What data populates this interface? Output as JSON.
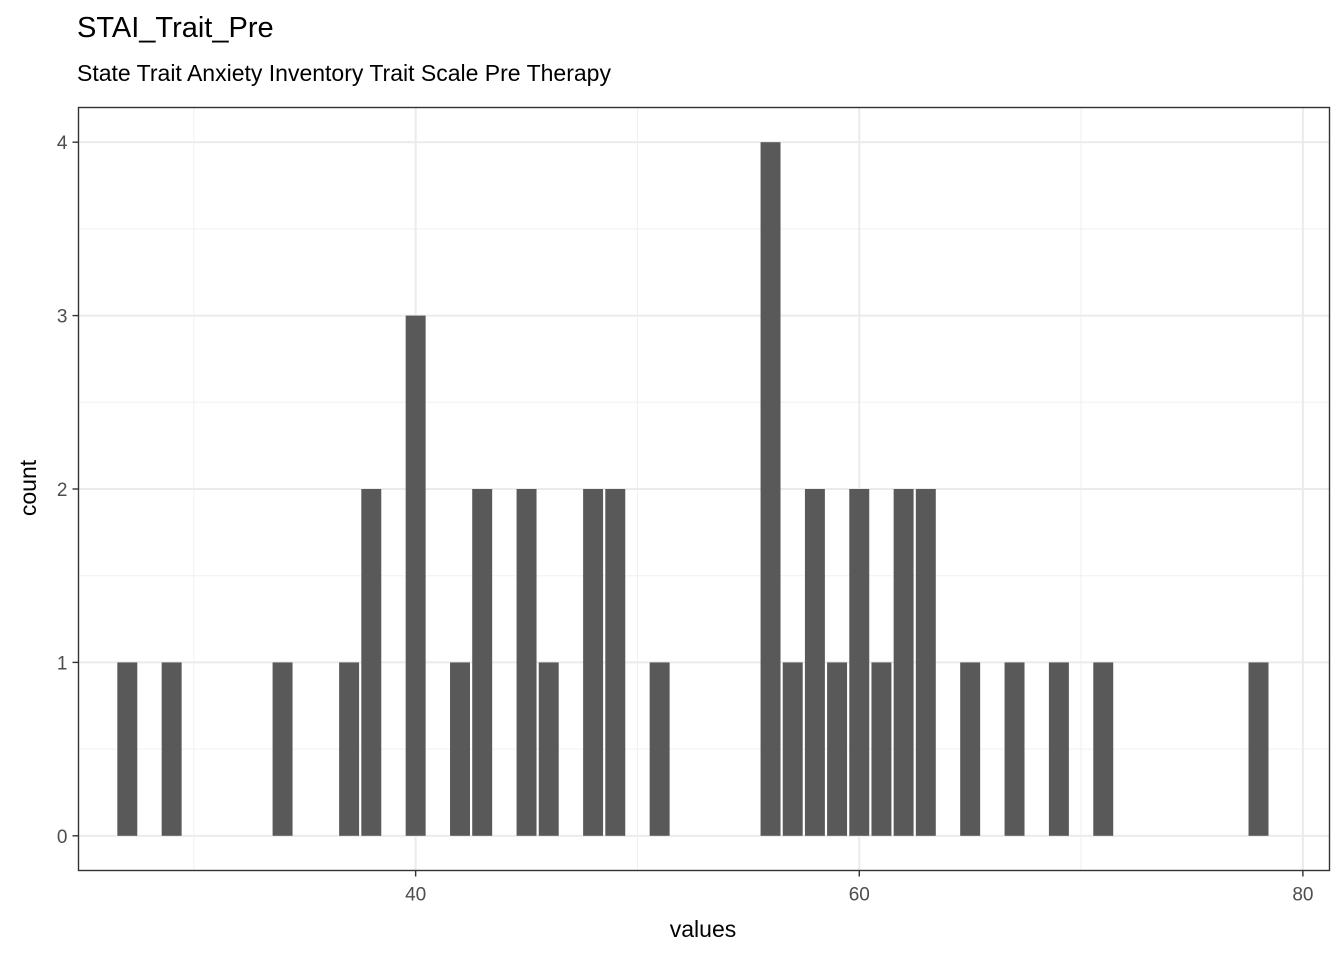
{
  "title": "STAI_Trait_Pre",
  "subtitle": "State Trait Anxiety Inventory Trait Scale Pre Therapy",
  "chart_data": {
    "type": "bar",
    "title": "STAI_Trait_Pre",
    "subtitle": "State Trait Anxiety Inventory Trait Scale Pre Therapy",
    "xlabel": "values",
    "ylabel": "count",
    "xlim": [
      24.8,
      81.2
    ],
    "ylim": [
      -0.2,
      4.2
    ],
    "x_ticks": [
      40,
      60,
      80
    ],
    "y_ticks": [
      0,
      1,
      2,
      3,
      4
    ],
    "grid": true,
    "bar_color": "#595959",
    "x": [
      27,
      29,
      34,
      37,
      38,
      40,
      42,
      43,
      45,
      46,
      48,
      49,
      51,
      56,
      57,
      58,
      59,
      60,
      61,
      62,
      63,
      65,
      67,
      69,
      71,
      78
    ],
    "values": [
      1,
      1,
      1,
      1,
      2,
      3,
      1,
      2,
      2,
      1,
      2,
      2,
      1,
      4,
      1,
      2,
      1,
      2,
      1,
      2,
      2,
      1,
      1,
      1,
      1,
      1
    ]
  }
}
